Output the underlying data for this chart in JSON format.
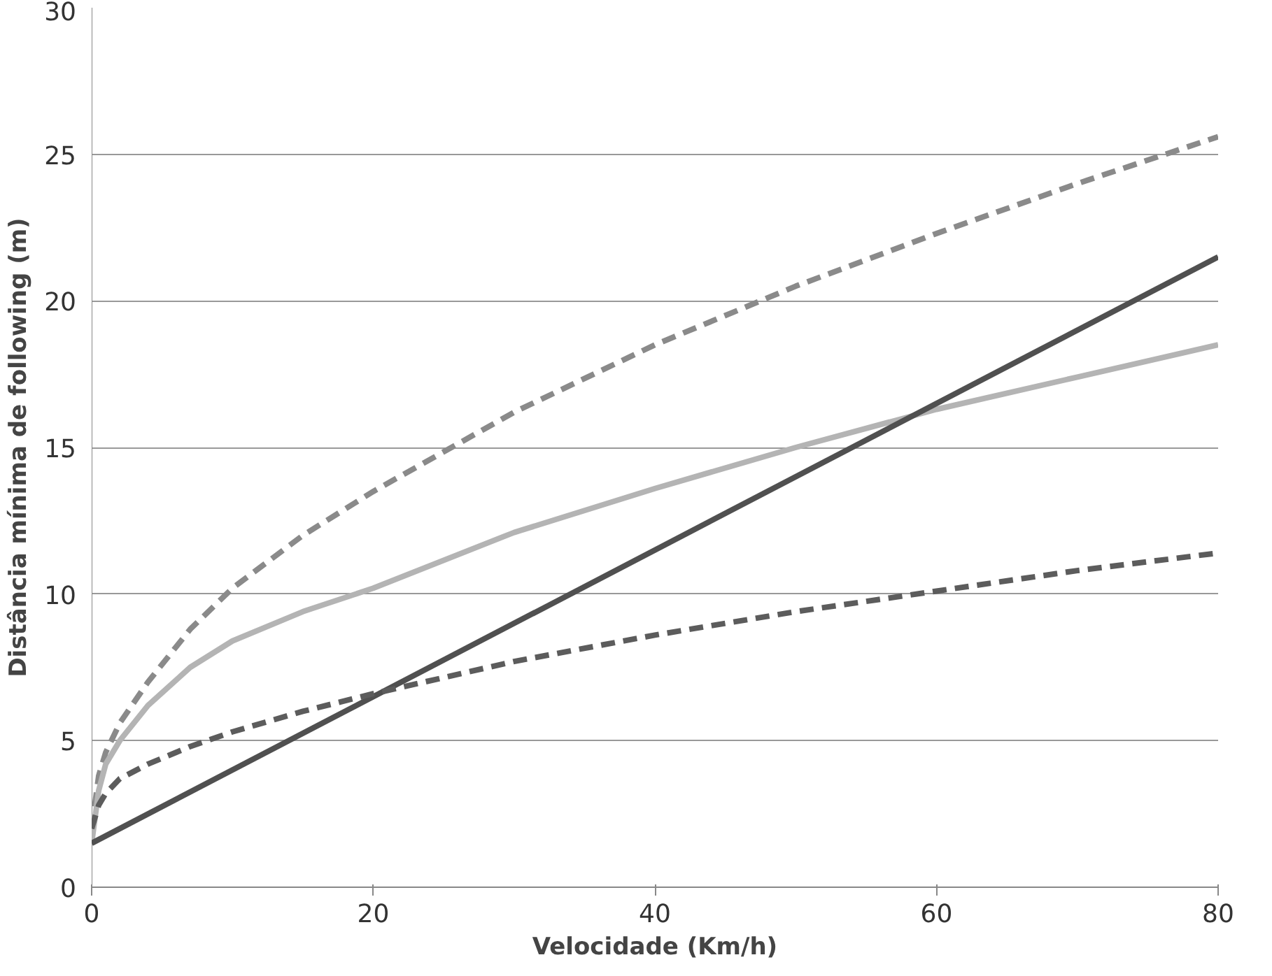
{
  "chart_data": {
    "type": "line",
    "xlabel": "Velocidade (Km/h)",
    "ylabel": "Distância mínima de following (m)",
    "xlim": [
      0,
      80
    ],
    "ylim": [
      0,
      30
    ],
    "xticks": [
      0,
      20,
      40,
      60,
      80
    ],
    "yticks": [
      0,
      5,
      10,
      15,
      20,
      25,
      30
    ],
    "grid": "y",
    "series": [
      {
        "color": "#8a8a8a",
        "line_style": "dashed",
        "x": [
          0,
          0.5,
          1,
          2,
          4,
          7,
          10,
          15,
          20,
          30,
          40,
          50,
          60,
          70,
          80
        ],
        "values": [
          2.0,
          3.8,
          4.6,
          5.6,
          7.0,
          8.8,
          10.2,
          12.0,
          13.5,
          16.2,
          18.5,
          20.5,
          22.3,
          24.0,
          25.6
        ]
      },
      {
        "color": "#b4b4b4",
        "line_style": "solid",
        "x": [
          0,
          0.5,
          1,
          2,
          4,
          7,
          10,
          15,
          20,
          30,
          40,
          50,
          60,
          70,
          80
        ],
        "values": [
          1.5,
          3.3,
          4.2,
          5.0,
          6.2,
          7.5,
          8.4,
          9.4,
          10.2,
          12.1,
          13.6,
          15.0,
          16.3,
          17.4,
          18.5
        ]
      },
      {
        "color": "#505050",
        "line_style": "solid",
        "x": [
          0,
          80
        ],
        "values": [
          1.5,
          21.5
        ]
      },
      {
        "color": "#5c5c5c",
        "line_style": "dashed",
        "x": [
          0,
          0.5,
          1,
          2,
          4,
          7,
          10,
          15,
          20,
          30,
          40,
          50,
          60,
          70,
          80
        ],
        "values": [
          2.0,
          2.8,
          3.2,
          3.7,
          4.2,
          4.8,
          5.3,
          6.0,
          6.6,
          7.7,
          8.6,
          9.4,
          10.1,
          10.8,
          11.4
        ]
      }
    ]
  }
}
